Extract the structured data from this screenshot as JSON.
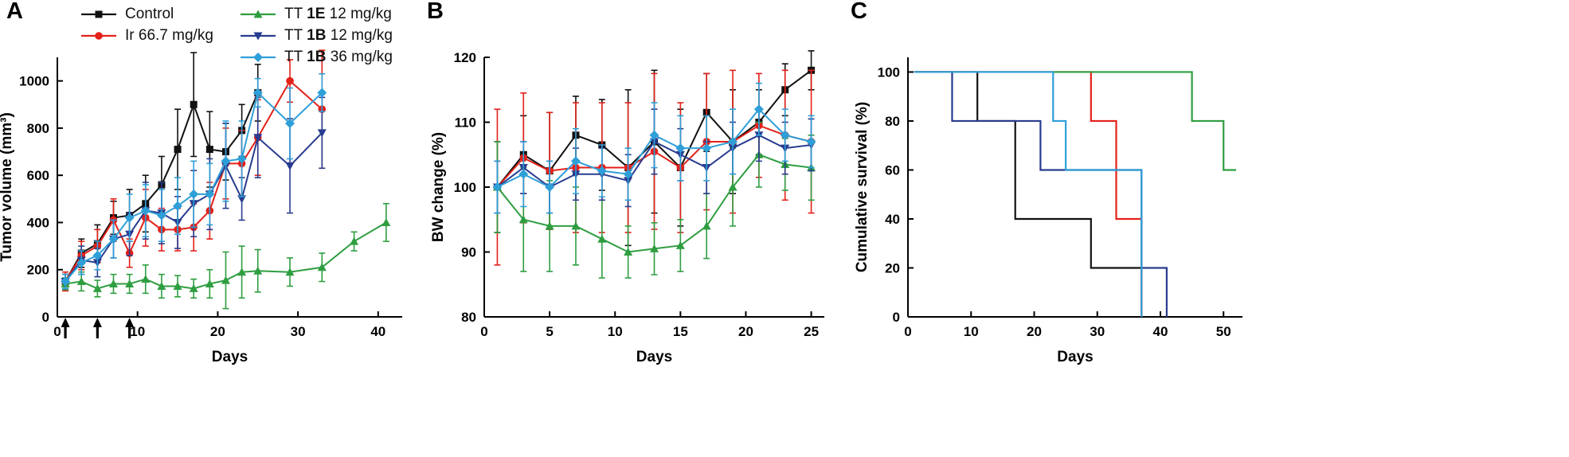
{
  "panels": [
    {
      "label": "A"
    },
    {
      "label": "B"
    },
    {
      "label": "C"
    }
  ],
  "legend": {
    "columns": [
      {
        "items": [
          {
            "parts": [
              {
                "t": "Control"
              }
            ],
            "color": "#111111",
            "marker": "square"
          },
          {
            "parts": [
              {
                "t": "Ir 66.7 mg/kg"
              }
            ],
            "color": "#e32119",
            "marker": "circle"
          }
        ]
      },
      {
        "items": [
          {
            "parts": [
              {
                "t": "TT "
              },
              {
                "t": "1E",
                "b": true
              },
              {
                "t": " 12 mg/kg"
              }
            ],
            "color": "#2f9e41",
            "marker": "triangle-up"
          },
          {
            "parts": [
              {
                "t": "TT "
              },
              {
                "t": "1B",
                "b": true
              },
              {
                "t": " 12 mg/kg"
              }
            ],
            "color": "#283c8f",
            "marker": "triangle-down"
          },
          {
            "parts": [
              {
                "t": "TT "
              },
              {
                "t": "1B",
                "b": true
              },
              {
                "t": " 36 mg/kg"
              }
            ],
            "color": "#2f9fd8",
            "marker": "diamond"
          }
        ]
      }
    ]
  },
  "chart_data": [
    {
      "id": "A",
      "type": "line",
      "title": "",
      "xlabel": "Days",
      "ylabel": "Tumor volume (mm³)",
      "xlim": [
        0,
        43
      ],
      "xticks": [
        0,
        10,
        20,
        30,
        40
      ],
      "ylim": [
        0,
        1100
      ],
      "yticks": [
        0,
        200,
        400,
        600,
        800,
        1000
      ],
      "arrows_x": [
        1,
        5,
        9
      ],
      "series": [
        {
          "name": "Control",
          "color": "#111111",
          "marker": "square",
          "x": [
            1,
            3,
            5,
            7,
            9,
            11,
            13,
            15,
            17,
            19,
            21,
            23,
            25
          ],
          "y": [
            150,
            270,
            310,
            420,
            430,
            480,
            560,
            710,
            900,
            710,
            700,
            790,
            950
          ],
          "err": [
            30,
            60,
            80,
            70,
            110,
            120,
            120,
            170,
            220,
            160,
            120,
            110,
            120
          ]
        },
        {
          "name": "Ir 66.7 mg/kg",
          "color": "#e32119",
          "marker": "circle",
          "x": [
            1,
            3,
            5,
            7,
            9,
            11,
            13,
            15,
            17,
            19,
            21,
            23,
            25,
            29,
            33
          ],
          "y": [
            150,
            260,
            300,
            410,
            270,
            420,
            370,
            370,
            380,
            450,
            650,
            650,
            760,
            1000,
            880
          ],
          "err": [
            40,
            60,
            70,
            90,
            60,
            120,
            90,
            90,
            100,
            120,
            150,
            140,
            160,
            90,
            250
          ]
        },
        {
          "name": "TT 1E 12 mg/kg",
          "color": "#2f9e41",
          "marker": "triangle-up",
          "x": [
            1,
            3,
            5,
            7,
            9,
            11,
            13,
            15,
            17,
            19,
            21,
            23,
            25,
            29,
            33,
            37,
            41
          ],
          "y": [
            140,
            150,
            120,
            140,
            140,
            160,
            130,
            130,
            120,
            140,
            155,
            190,
            195,
            190,
            210,
            320,
            400
          ],
          "err": [
            25,
            40,
            35,
            40,
            40,
            60,
            50,
            45,
            40,
            60,
            120,
            110,
            90,
            60,
            60,
            40,
            80
          ]
        },
        {
          "name": "TT 1B 12 mg/kg",
          "color": "#283c8f",
          "marker": "triangle-down",
          "x": [
            1,
            3,
            5,
            7,
            9,
            11,
            13,
            15,
            17,
            19,
            21,
            23,
            25,
            29,
            33
          ],
          "y": [
            150,
            240,
            230,
            330,
            350,
            450,
            440,
            400,
            480,
            520,
            640,
            500,
            760,
            640,
            780
          ],
          "err": [
            30,
            60,
            60,
            80,
            90,
            120,
            130,
            110,
            140,
            150,
            180,
            90,
            170,
            200,
            150
          ]
        },
        {
          "name": "TT 1B 36 mg/kg",
          "color": "#2f9fd8",
          "marker": "diamond",
          "x": [
            1,
            3,
            5,
            7,
            9,
            11,
            13,
            15,
            17,
            19,
            21,
            23,
            25,
            29,
            33
          ],
          "y": [
            150,
            230,
            260,
            330,
            420,
            450,
            430,
            470,
            520,
            520,
            660,
            670,
            950,
            820,
            950
          ],
          "err": [
            30,
            50,
            60,
            80,
            100,
            110,
            110,
            120,
            140,
            130,
            170,
            160,
            60,
            150,
            80
          ]
        }
      ]
    },
    {
      "id": "B",
      "type": "line",
      "title": "",
      "xlabel": "Days",
      "ylabel": "BW change (%)",
      "xlim": [
        0,
        26
      ],
      "xticks": [
        0,
        5,
        10,
        15,
        20,
        25
      ],
      "ylim": [
        80,
        120
      ],
      "yticks": [
        80,
        90,
        100,
        110,
        120
      ],
      "series": [
        {
          "name": "Control",
          "color": "#111111",
          "marker": "square",
          "x": [
            1,
            3,
            5,
            7,
            9,
            11,
            13,
            15,
            17,
            19,
            21,
            23,
            25
          ],
          "y": [
            100,
            105,
            102.5,
            108,
            106.5,
            103,
            107,
            103,
            111.5,
            107,
            110,
            115,
            118
          ],
          "err": [
            7,
            6,
            9,
            6,
            7,
            12,
            11,
            9,
            6,
            8,
            5,
            4,
            3
          ]
        },
        {
          "name": "Ir 66.7 mg/kg",
          "color": "#e32119",
          "marker": "circle",
          "x": [
            1,
            3,
            5,
            7,
            9,
            11,
            13,
            15,
            17,
            19,
            21,
            23,
            25
          ],
          "y": [
            100,
            104.5,
            102.5,
            103,
            103,
            103,
            105.5,
            103,
            107,
            107,
            109.5,
            108,
            107
          ],
          "err": [
            12,
            10,
            9,
            10,
            10,
            10,
            12,
            10,
            10.5,
            11,
            8,
            10,
            11
          ]
        },
        {
          "name": "TT 1E 12 mg/kg",
          "color": "#2f9e41",
          "marker": "triangle-up",
          "x": [
            1,
            3,
            5,
            7,
            9,
            11,
            13,
            15,
            17,
            19,
            21,
            23,
            25
          ],
          "y": [
            100,
            95,
            94,
            94,
            92,
            90,
            90.5,
            91,
            94,
            100,
            105,
            103.5,
            103
          ],
          "err": [
            7,
            8,
            7,
            6,
            6,
            4,
            4,
            4,
            5,
            6,
            5,
            4,
            5
          ]
        },
        {
          "name": "TT 1B 12 mg/kg",
          "color": "#283c8f",
          "marker": "triangle-down",
          "x": [
            1,
            3,
            5,
            7,
            9,
            11,
            13,
            15,
            17,
            19,
            21,
            23,
            25
          ],
          "y": [
            100,
            103,
            100,
            102,
            102,
            101,
            107,
            105,
            103,
            106,
            108,
            106,
            106.5
          ],
          "err": [
            4,
            4,
            4,
            4,
            4,
            4,
            5,
            4,
            4,
            4,
            4,
            4,
            4
          ]
        },
        {
          "name": "TT 1B 36 mg/kg",
          "color": "#2f9fd8",
          "marker": "diamond",
          "x": [
            1,
            3,
            5,
            7,
            9,
            11,
            13,
            15,
            17,
            19,
            21,
            23,
            25
          ],
          "y": [
            100,
            102,
            100,
            104,
            102.5,
            102,
            108,
            106,
            106,
            107,
            112,
            108,
            107
          ],
          "err": [
            4,
            5,
            4,
            5,
            4,
            4,
            5,
            5,
            5,
            5,
            4,
            4,
            4
          ]
        }
      ]
    },
    {
      "id": "C",
      "type": "step",
      "title": "",
      "xlabel": "Days",
      "ylabel": "Cumulative survival (%)",
      "xlim": [
        0,
        53
      ],
      "xticks": [
        0,
        10,
        20,
        30,
        40,
        50
      ],
      "ylim": [
        0,
        106
      ],
      "yticks": [
        0,
        20,
        40,
        60,
        80,
        100
      ],
      "series": [
        {
          "name": "Control",
          "color": "#111111",
          "points": [
            [
              1,
              100
            ],
            [
              11,
              100
            ],
            [
              11,
              80
            ],
            [
              17,
              80
            ],
            [
              17,
              40
            ],
            [
              29,
              40
            ],
            [
              29,
              20
            ],
            [
              37,
              20
            ],
            [
              37,
              0
            ]
          ]
        },
        {
          "name": "Ir 66.7 mg/kg",
          "color": "#e32119",
          "points": [
            [
              1,
              100
            ],
            [
              29,
              100
            ],
            [
              29,
              80
            ],
            [
              33,
              80
            ],
            [
              33,
              40
            ],
            [
              37,
              40
            ],
            [
              37,
              0
            ]
          ]
        },
        {
          "name": "TT 1E 12 mg/kg",
          "color": "#2f9e41",
          "points": [
            [
              1,
              100
            ],
            [
              45,
              100
            ],
            [
              45,
              80
            ],
            [
              50,
              80
            ],
            [
              50,
              60
            ],
            [
              52,
              60
            ]
          ]
        },
        {
          "name": "TT 1B 12 mg/kg",
          "color": "#283c8f",
          "points": [
            [
              1,
              100
            ],
            [
              7,
              100
            ],
            [
              7,
              80
            ],
            [
              21,
              80
            ],
            [
              21,
              60
            ],
            [
              37,
              60
            ],
            [
              37,
              20
            ],
            [
              41,
              20
            ],
            [
              41,
              0
            ]
          ]
        },
        {
          "name": "TT 1B 36 mg/kg",
          "color": "#2f9fd8",
          "points": [
            [
              1,
              100
            ],
            [
              23,
              100
            ],
            [
              23,
              80
            ],
            [
              25,
              80
            ],
            [
              25,
              60
            ],
            [
              37,
              60
            ],
            [
              37,
              0
            ]
          ]
        }
      ]
    }
  ]
}
